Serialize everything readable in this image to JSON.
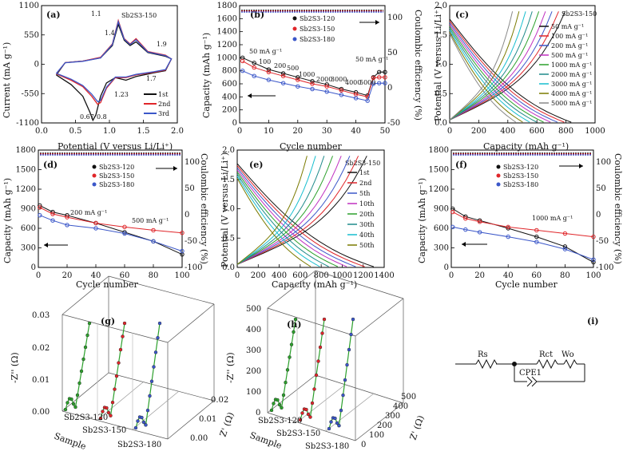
{
  "figure": {
    "panels": [
      {
        "id": "a",
        "label": "(a)",
        "sample": "Sb2S3-150",
        "xlabel": "Potential (V versus Li/Li⁺)",
        "ylabel": "Current (mA g⁻¹)",
        "xticks": [
          "0.0",
          "0.5",
          "1.0",
          "1.5",
          "2.0"
        ],
        "yticks": [
          "1100",
          "550",
          "0",
          "-550",
          "-1100"
        ],
        "annotations": [
          "1.1",
          "1.4",
          "1.9",
          "0.67",
          "0.8",
          "1.23",
          "1.7"
        ],
        "legend": [
          "1st",
          "2nd",
          "3rd"
        ]
      },
      {
        "id": "b",
        "label": "(b)",
        "xlabel": "Cycle number",
        "ylabel": "Capacity (mAh g⁻¹)",
        "ylabel2": "Coulombic efficiency (%)",
        "xticks": [
          "0",
          "10",
          "20",
          "30",
          "40",
          "50"
        ],
        "yticks": [
          "0",
          "200",
          "400",
          "600",
          "800",
          "1000",
          "1200",
          "1400",
          "1600",
          "1800"
        ],
        "y2ticks": [
          "100",
          "50",
          "0",
          "-50"
        ],
        "legend": [
          "Sb2S3-120",
          "Sb2S3-150",
          "Sb2S3-180"
        ],
        "annotations": [
          "50 mA g⁻¹",
          "100",
          "200",
          "500",
          "1000",
          "2000",
          "3000",
          "4000",
          "5000",
          "50 mA g⁻¹"
        ]
      },
      {
        "id": "c",
        "label": "(c)",
        "sample": "Sb2S3-150",
        "xlabel": "Capacity (mAh g⁻¹)",
        "ylabel": "Potential (V versus Li/Li⁺)",
        "xticks": [
          "0",
          "200",
          "400",
          "600",
          "800",
          "1000"
        ],
        "yticks": [
          "0.0",
          "0.5",
          "1.0",
          "1.5",
          "2.0"
        ],
        "legend": [
          "50 mA g⁻¹",
          "100 mA g⁻¹",
          "200 mA g⁻¹",
          "500 mA g⁻¹",
          "1000 mA g⁻¹",
          "2000 mA g⁻¹",
          "3000 mA g⁻¹",
          "4000 mA g⁻¹",
          "5000 mA g⁻¹"
        ]
      },
      {
        "id": "d",
        "label": "(d)",
        "xlabel": "Cycle number",
        "ylabel": "Capacity (mAh g⁻¹)",
        "ylabel2": "Coulombic efficiency (%)",
        "xticks": [
          "0",
          "20",
          "40",
          "60",
          "80",
          "100"
        ],
        "yticks": [
          "0",
          "300",
          "600",
          "900",
          "1200",
          "1500",
          "1800"
        ],
        "y2ticks": [
          "100",
          "50",
          "0",
          "-50",
          "-100"
        ],
        "legend": [
          "Sb2S3-120",
          "Sb2S3-150",
          "Sb2S3-180"
        ],
        "annotations": [
          "200 mA g⁻¹",
          "500 mA g⁻¹"
        ]
      },
      {
        "id": "e",
        "label": "(e)",
        "sample": "Sb2S3-150",
        "xlabel": "Capacity (mAh g⁻¹)",
        "ylabel": "Potential (V versus Li/Li⁺)",
        "xticks": [
          "0",
          "200",
          "400",
          "600",
          "800",
          "1000",
          "1200",
          "1400"
        ],
        "yticks": [
          "0.0",
          "0.5",
          "1.0",
          "1.5",
          "2.0"
        ],
        "legend": [
          "1st",
          "2nd",
          "5th",
          "10th",
          "20th",
          "30th",
          "40th",
          "50th"
        ]
      },
      {
        "id": "f",
        "label": "(f)",
        "xlabel": "Cycle number",
        "ylabel": "Capacity (mAh g⁻¹)",
        "ylabel2": "Coulombic efficiency (%)",
        "xticks": [
          "0",
          "20",
          "40",
          "60",
          "80",
          "100"
        ],
        "yticks": [
          "0",
          "300",
          "600",
          "900",
          "1200",
          "1500",
          "1800"
        ],
        "y2ticks": [
          "100",
          "50",
          "0",
          "-50",
          "-100"
        ],
        "legend": [
          "Sb2S3-120",
          "Sb2S3-150",
          "Sb2S3-180"
        ],
        "annotations": [
          "1000 mA g⁻¹"
        ]
      },
      {
        "id": "g",
        "label": "(g)",
        "zlabel": "-Z'' (Ω)",
        "xlabel": "Z' (Ω)",
        "sample_axis": "Sample",
        "zticks": [
          "0.00",
          "0.01",
          "0.02",
          "0.03"
        ],
        "xticks": [
          "0.00",
          "0.01",
          "0.02"
        ],
        "samples": [
          "Sb2S3-120",
          "Sb2S3-150",
          "Sb2S3-180"
        ]
      },
      {
        "id": "h",
        "label": "(h)",
        "zlabel": "-Z'' (Ω)",
        "xlabel": "Z' (Ω)",
        "sample_axis": "Sample",
        "zticks": [
          "0",
          "100",
          "200",
          "300",
          "400",
          "500"
        ],
        "xticks": [
          "0",
          "100",
          "200",
          "300",
          "400",
          "500"
        ],
        "samples": [
          "Sb2S3-120",
          "Sb2S3-150",
          "Sb2S3-180"
        ]
      },
      {
        "id": "i",
        "label": "(i)",
        "elements": [
          "Rs",
          "Rct",
          "Wo",
          "CPE1"
        ]
      }
    ]
  },
  "colors": {
    "black": "#111111",
    "red": "#e0262a",
    "blue": "#3b57c9",
    "green": "#2ca02c",
    "teal": "#1f8a8a",
    "magenta": "#c030c0",
    "cyan": "#17becf",
    "gray": "#888888",
    "olive": "#7a7a00"
  },
  "chart_data": [
    {
      "type": "line",
      "panel": "a",
      "title": "Sb2S3-150",
      "xlabel": "Potential (V versus Li/Li⁺)",
      "ylabel": "Current (mA g⁻¹)",
      "xlim": [
        -0.2,
        2.1
      ],
      "ylim": [
        -1100,
        1100
      ],
      "series": [
        {
          "name": "1st",
          "x": [
            0.05,
            0.3,
            0.5,
            0.62,
            0.67,
            0.72,
            0.8,
            0.9,
            1.05,
            1.23,
            1.4,
            1.7,
            1.9,
            2.0,
            1.9,
            1.6,
            1.4,
            1.3,
            1.2,
            1.1,
            1.0,
            0.8,
            0.5,
            0.2,
            0.05
          ],
          "y": [
            -200,
            -380,
            -600,
            -900,
            -1050,
            -950,
            -600,
            -350,
            -250,
            -300,
            -230,
            -160,
            -120,
            100,
            150,
            220,
            420,
            350,
            450,
            750,
            350,
            120,
            60,
            30,
            -200
          ]
        },
        {
          "name": "2nd",
          "x": [
            0.05,
            0.3,
            0.5,
            0.65,
            0.75,
            0.8,
            0.9,
            1.05,
            1.23,
            1.4,
            1.7,
            1.9,
            2.0,
            1.9,
            1.6,
            1.4,
            1.3,
            1.2,
            1.1,
            1.0,
            0.8,
            0.5,
            0.2,
            0.05
          ],
          "y": [
            -180,
            -300,
            -420,
            -600,
            -750,
            -720,
            -450,
            -250,
            -250,
            -200,
            -150,
            -110,
            100,
            170,
            240,
            480,
            380,
            480,
            820,
            380,
            130,
            60,
            30,
            -180
          ]
        },
        {
          "name": "3rd",
          "x": [
            0.05,
            0.3,
            0.5,
            0.65,
            0.75,
            0.8,
            0.9,
            1.05,
            1.23,
            1.4,
            1.7,
            1.9,
            2.0,
            1.9,
            1.6,
            1.4,
            1.3,
            1.2,
            1.1,
            1.0,
            0.8,
            0.5,
            0.2,
            0.05
          ],
          "y": [
            -170,
            -280,
            -400,
            -560,
            -700,
            -680,
            -430,
            -240,
            -240,
            -190,
            -140,
            -100,
            100,
            160,
            230,
            460,
            370,
            470,
            800,
            370,
            120,
            55,
            28,
            -170
          ]
        }
      ]
    },
    {
      "type": "scatter",
      "panel": "b",
      "xlabel": "Cycle number",
      "ylabel": "Capacity (mAh g⁻¹)",
      "xlim": [
        0,
        50
      ],
      "ylim": [
        0,
        1800
      ],
      "series": [
        {
          "name": "Sb2S3-120",
          "x": [
            1,
            5,
            10,
            15,
            20,
            25,
            30,
            35,
            40,
            44,
            46,
            48,
            50
          ],
          "y": [
            1000,
            920,
            820,
            760,
            700,
            640,
            590,
            520,
            470,
            420,
            700,
            780,
            780
          ]
        },
        {
          "name": "Sb2S3-150",
          "x": [
            1,
            5,
            10,
            15,
            20,
            25,
            30,
            35,
            40,
            44,
            46,
            48,
            50
          ],
          "y": [
            950,
            850,
            780,
            720,
            660,
            600,
            560,
            500,
            440,
            400,
            690,
            700,
            700
          ]
        },
        {
          "name": "Sb2S3-180",
          "x": [
            1,
            5,
            10,
            15,
            20,
            25,
            30,
            35,
            40,
            44,
            46,
            48,
            50
          ],
          "y": [
            800,
            720,
            660,
            610,
            560,
            520,
            480,
            430,
            380,
            340,
            600,
            610,
            610
          ]
        }
      ]
    },
    {
      "type": "line",
      "panel": "c",
      "title": "Sb2S3-150",
      "xlabel": "Capacity (mAh g⁻¹)",
      "ylabel": "Potential (V versus Li/Li⁺)",
      "xlim": [
        0,
        1100
      ],
      "ylim": [
        0,
        2.0
      ],
      "series": [
        {
          "name": "50 mA g⁻¹",
          "x": [
            0,
            200,
            400,
            600,
            800,
            920
          ],
          "y": [
            1.8,
            1.1,
            0.8,
            0.6,
            0.3,
            0.0
          ]
        },
        {
          "name": "5000 mA g⁻¹",
          "x": [
            0,
            150,
            300,
            420,
            500
          ],
          "y": [
            1.6,
            0.9,
            0.6,
            0.3,
            0.0
          ]
        }
      ]
    },
    {
      "type": "scatter",
      "panel": "d",
      "xlabel": "Cycle number",
      "ylabel": "Capacity (mAh g⁻¹)",
      "xlim": [
        0,
        100
      ],
      "ylim": [
        0,
        1800
      ],
      "series": [
        {
          "name": "Sb2S3-120",
          "x": [
            1,
            10,
            20,
            40,
            60,
            80,
            100
          ],
          "y": [
            950,
            850,
            800,
            680,
            540,
            400,
            200
          ]
        },
        {
          "name": "Sb2S3-150",
          "x": [
            1,
            10,
            20,
            40,
            60,
            80,
            100
          ],
          "y": [
            920,
            820,
            770,
            680,
            620,
            570,
            530
          ]
        },
        {
          "name": "Sb2S3-180",
          "x": [
            1,
            10,
            20,
            40,
            60,
            80,
            100
          ],
          "y": [
            800,
            720,
            650,
            600,
            520,
            400,
            250
          ]
        }
      ]
    },
    {
      "type": "line",
      "panel": "e",
      "title": "Sb2S3-150",
      "xlabel": "Capacity (mAh g⁻¹)",
      "ylabel": "Potential (V versus Li/Li⁺)",
      "xlim": [
        0,
        1400
      ],
      "ylim": [
        0,
        2.0
      ],
      "series": [
        {
          "name": "1st",
          "x": [
            0,
            300,
            600,
            900,
            1100,
            1300
          ],
          "y": [
            1.8,
            1.6,
            1.0,
            0.6,
            0.3,
            0.0
          ]
        },
        {
          "name": "50th",
          "x": [
            0,
            100,
            300,
            500,
            700
          ],
          "y": [
            1.6,
            1.0,
            0.7,
            0.4,
            0.0
          ]
        }
      ]
    },
    {
      "type": "scatter",
      "panel": "f",
      "xlabel": "Cycle number",
      "ylabel": "Capacity (mAh g⁻¹)",
      "xlim": [
        0,
        100
      ],
      "ylim": [
        0,
        1800
      ],
      "series": [
        {
          "name": "Sb2S3-120",
          "x": [
            1,
            10,
            20,
            40,
            60,
            80,
            100
          ],
          "y": [
            900,
            780,
            720,
            600,
            470,
            320,
            80
          ]
        },
        {
          "name": "Sb2S3-150",
          "x": [
            1,
            10,
            20,
            40,
            60,
            80,
            100
          ],
          "y": [
            850,
            750,
            700,
            620,
            570,
            520,
            470
          ]
        },
        {
          "name": "Sb2S3-180",
          "x": [
            1,
            10,
            20,
            40,
            60,
            80,
            100
          ],
          "y": [
            620,
            580,
            540,
            470,
            390,
            280,
            120
          ]
        }
      ]
    }
  ]
}
